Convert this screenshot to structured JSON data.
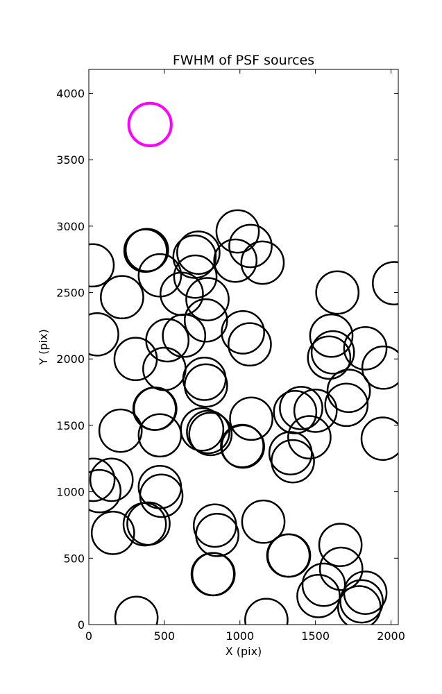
{
  "chart_data": {
    "type": "scatter",
    "title": "FWHM of PSF sources",
    "xlabel": "X (pix)",
    "ylabel": "Y (pix)",
    "xlim": [
      0,
      2048
    ],
    "ylim": [
      0,
      4180
    ],
    "x_ticks": [
      0,
      500,
      1000,
      1500,
      2000
    ],
    "y_ticks": [
      0,
      500,
      1000,
      1500,
      2000,
      2500,
      3000,
      3500,
      4000
    ],
    "grid": false,
    "marker": "open circle",
    "circle_radius": 160,
    "series": [
      {
        "color": "#000000",
        "points": [
          [
            25,
            2705
          ],
          [
            55,
            2185
          ],
          [
            220,
            2465
          ],
          [
            375,
            2815
          ],
          [
            385,
            2820
          ],
          [
            470,
            2630
          ],
          [
            615,
            2490
          ],
          [
            700,
            2770
          ],
          [
            725,
            2800
          ],
          [
            705,
            2620
          ],
          [
            785,
            2450
          ],
          [
            775,
            2290
          ],
          [
            985,
            2960
          ],
          [
            1070,
            2850
          ],
          [
            970,
            2740
          ],
          [
            1150,
            2725
          ],
          [
            1645,
            2500
          ],
          [
            2020,
            2570
          ],
          [
            1020,
            2200
          ],
          [
            1065,
            2110
          ],
          [
            310,
            2000
          ],
          [
            520,
            2140
          ],
          [
            630,
            2175
          ],
          [
            500,
            1925
          ],
          [
            1605,
            2175
          ],
          [
            1590,
            2010
          ],
          [
            1615,
            2050
          ],
          [
            1830,
            2080
          ],
          [
            1950,
            1935
          ],
          [
            765,
            1850
          ],
          [
            775,
            1800
          ],
          [
            435,
            1625
          ],
          [
            440,
            1625
          ],
          [
            1720,
            1760
          ],
          [
            1705,
            1655
          ],
          [
            1365,
            1600
          ],
          [
            1405,
            1630
          ],
          [
            1500,
            1610
          ],
          [
            1075,
            1550
          ],
          [
            1460,
            1410
          ],
          [
            1945,
            1400
          ],
          [
            210,
            1460
          ],
          [
            470,
            1425
          ],
          [
            750,
            1470
          ],
          [
            790,
            1450
          ],
          [
            805,
            1435
          ],
          [
            1015,
            1345
          ],
          [
            1020,
            1340
          ],
          [
            1335,
            1290
          ],
          [
            1350,
            1230
          ],
          [
            30,
            1090
          ],
          [
            70,
            1005
          ],
          [
            150,
            1090
          ],
          [
            470,
            1035
          ],
          [
            480,
            970
          ],
          [
            370,
            755
          ],
          [
            395,
            760
          ],
          [
            160,
            690
          ],
          [
            1155,
            775
          ],
          [
            835,
            745
          ],
          [
            850,
            675
          ],
          [
            1320,
            520
          ],
          [
            1325,
            520
          ],
          [
            1665,
            600
          ],
          [
            1670,
            420
          ],
          [
            820,
            380
          ],
          [
            825,
            380
          ],
          [
            1555,
            300
          ],
          [
            1520,
            215
          ],
          [
            1830,
            240
          ],
          [
            1805,
            175
          ],
          [
            1790,
            130
          ],
          [
            315,
            50
          ],
          [
            1175,
            35
          ]
        ]
      },
      {
        "color": "#ff00ff",
        "points": [
          [
            405,
            3765
          ]
        ]
      }
    ]
  }
}
